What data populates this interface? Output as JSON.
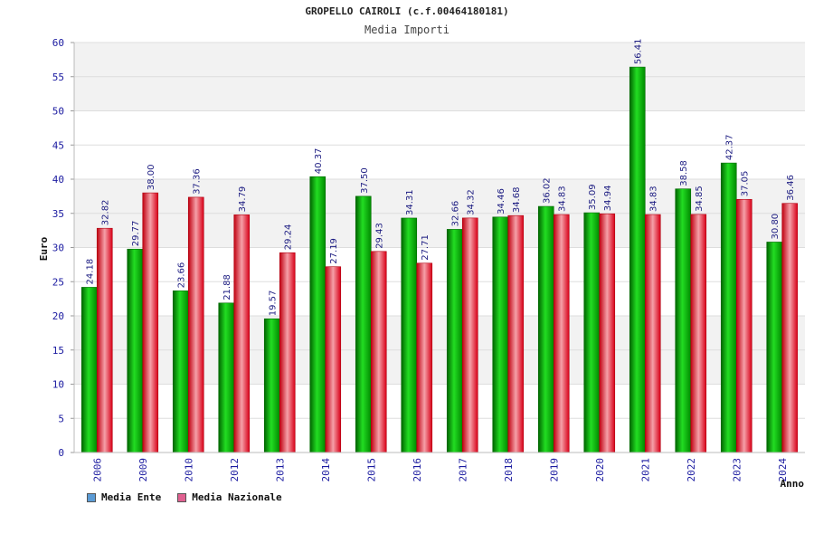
{
  "chart_data": {
    "type": "bar",
    "title": "GROPELLO CAIROLI (c.f.00464180181)",
    "subtitle": "Media Importi",
    "xlabel": "Anno",
    "ylabel": "Euro",
    "ylim": [
      0,
      60
    ],
    "yticks": [
      0,
      5,
      10,
      15,
      20,
      25,
      30,
      35,
      40,
      45,
      50,
      55,
      60
    ],
    "categories": [
      "2006",
      "2009",
      "2010",
      "2012",
      "2013",
      "2014",
      "2015",
      "2016",
      "2017",
      "2018",
      "2019",
      "2020",
      "2021",
      "2022",
      "2023",
      "2024"
    ],
    "series": [
      {
        "name": "Media Ente",
        "color": "#00b000",
        "legend_color": "#5b9bd5",
        "values": [
          24.18,
          29.77,
          23.66,
          21.88,
          19.57,
          40.37,
          37.5,
          34.31,
          32.66,
          34.46,
          36.02,
          35.09,
          56.41,
          38.58,
          42.37,
          30.8
        ]
      },
      {
        "name": "Media Nazionale",
        "color": "#e8202a",
        "legend_color": "#e06090",
        "values": [
          32.82,
          38.0,
          37.36,
          34.79,
          29.24,
          27.19,
          29.43,
          27.71,
          34.32,
          34.68,
          34.83,
          34.94,
          34.83,
          34.85,
          37.05,
          36.46
        ]
      }
    ],
    "data_labels": [
      [
        "24.18",
        "29.77",
        "23.66",
        "21.88",
        "19.57",
        "40.37",
        "37.50",
        "34.31",
        "32.66",
        "34.46",
        "36.02",
        "35.09",
        "56.41",
        "38.58",
        "42.37",
        "30.80"
      ],
      [
        "32.82",
        "38.00",
        "37.36",
        "34.79",
        "29.24",
        "27.19",
        "29.43",
        "27.71",
        "34.32",
        "34.68",
        "34.83",
        "34.94",
        "34.83",
        "34.85",
        "37.05",
        "36.46"
      ]
    ],
    "legend_position": "bottom-left",
    "grid": true
  }
}
